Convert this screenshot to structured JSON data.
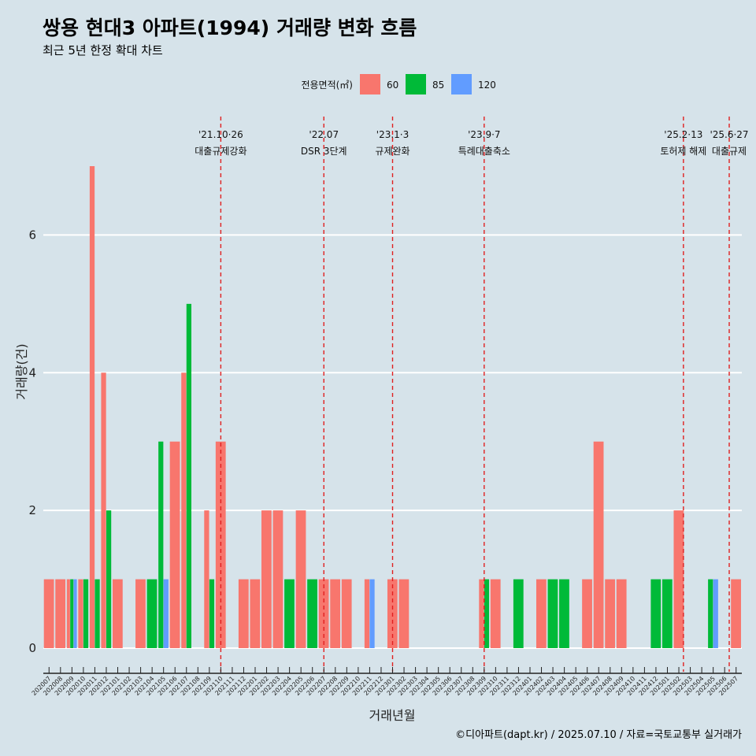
{
  "title": "쌍용 현대3 아파트(1994) 거래량 변화 흐름",
  "subtitle": "최근 5년 한정 확대 차트",
  "caption": "©디아파트(dapt.kr) / 2025.07.10 / 자료=국토교통부 실거래가",
  "chart_data": {
    "type": "bar",
    "xlabel": "거래년월",
    "ylabel": "거래량(건)",
    "ylim": [
      0,
      7
    ],
    "y_ticks": [
      "0",
      "2",
      "4",
      "6"
    ],
    "legend": {
      "title": "전용면적(㎡)",
      "position": "top"
    },
    "categories": [
      "202007",
      "202008",
      "202009",
      "202010",
      "202011",
      "202012",
      "202101",
      "202102",
      "202103",
      "202104",
      "202105",
      "202106",
      "202107",
      "202108",
      "202109",
      "202110",
      "202111",
      "202112",
      "202201",
      "202202",
      "202203",
      "202204",
      "202205",
      "202206",
      "202207",
      "202208",
      "202209",
      "202210",
      "202211",
      "202212",
      "202301",
      "202302",
      "202303",
      "202304",
      "202305",
      "202306",
      "202307",
      "202308",
      "202309",
      "202310",
      "202311",
      "202312",
      "202401",
      "202402",
      "202403",
      "202404",
      "202405",
      "202406",
      "202407",
      "202408",
      "202409",
      "202410",
      "202411",
      "202412",
      "202501",
      "202502",
      "202503",
      "202504",
      "202505",
      "202506",
      "202507"
    ],
    "series": [
      {
        "name": "60",
        "color": "#f8766d",
        "values": [
          1,
          1,
          1,
          1,
          7,
          4,
          1,
          0,
          1,
          0,
          0,
          3,
          4,
          0,
          2,
          3,
          0,
          1,
          1,
          2,
          2,
          0,
          2,
          0,
          1,
          1,
          1,
          0,
          1,
          0,
          1,
          1,
          0,
          0,
          0,
          0,
          0,
          0,
          1,
          1,
          0,
          0,
          0,
          1,
          0,
          0,
          0,
          1,
          3,
          1,
          1,
          0,
          0,
          0,
          0,
          2,
          0,
          0,
          0,
          0,
          1
        ]
      },
      {
        "name": "85",
        "color": "#00ba38",
        "values": [
          0,
          0,
          1,
          1,
          1,
          2,
          0,
          0,
          0,
          1,
          3,
          0,
          5,
          0,
          1,
          0,
          0,
          0,
          0,
          0,
          0,
          1,
          0,
          1,
          0,
          0,
          0,
          0,
          0,
          0,
          0,
          0,
          0,
          0,
          0,
          0,
          0,
          0,
          1,
          0,
          0,
          1,
          0,
          0,
          1,
          1,
          0,
          0,
          0,
          0,
          0,
          0,
          0,
          1,
          1,
          0,
          0,
          0,
          1,
          0,
          0
        ]
      },
      {
        "name": "120",
        "color": "#619cff",
        "values": [
          0,
          0,
          1,
          0,
          0,
          0,
          0,
          0,
          0,
          0,
          1,
          0,
          0,
          0,
          0,
          0,
          0,
          0,
          0,
          0,
          0,
          0,
          0,
          0,
          0,
          0,
          0,
          0,
          1,
          0,
          0,
          0,
          0,
          0,
          0,
          0,
          0,
          0,
          0,
          0,
          0,
          0,
          0,
          0,
          0,
          0,
          0,
          0,
          0,
          0,
          0,
          0,
          0,
          0,
          0,
          0,
          0,
          0,
          1,
          0,
          0
        ]
      }
    ],
    "events": [
      {
        "date": "'21.10·26",
        "label": "대출규제강화",
        "index": 15.0
      },
      {
        "date": "'22.07",
        "label": "DSR 3단계",
        "index": 24.0
      },
      {
        "date": "'23.1·3",
        "label": "규제완화",
        "index": 30.0
      },
      {
        "date": "'23.9·7",
        "label": "특례대출축소",
        "index": 38.0
      },
      {
        "date": "'25.2·13",
        "label": "토허제 해제",
        "index": 55.4
      },
      {
        "date": "'25.6·27",
        "label": "대출규제",
        "index": 59.4
      }
    ]
  }
}
